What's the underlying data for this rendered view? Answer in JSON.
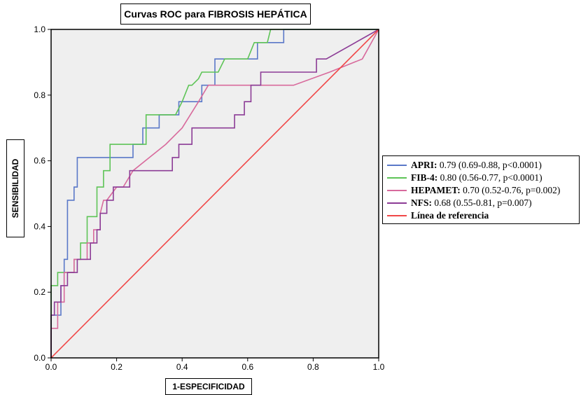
{
  "chart_data": {
    "type": "line",
    "title": "Curvas ROC para FIBROSIS HEPÁTICA",
    "xlabel": "1-ESPECIFICIDAD",
    "ylabel": "SENSIBILIDAD",
    "xlim": [
      0,
      1
    ],
    "ylim": [
      0,
      1
    ],
    "x_ticks": [
      "0.0",
      "0.2",
      "0.4",
      "0.6",
      "0.8",
      "1.0"
    ],
    "y_ticks": [
      "0.0",
      "0.2",
      "0.4",
      "0.6",
      "0.8",
      "1.0"
    ],
    "grid": false,
    "legend_position": "right",
    "plot_background": "#efefef",
    "series": [
      {
        "key": "apri",
        "name": "APRI:",
        "label_rest": " 0.79 (0.69-0.88, p<0.0001)",
        "color": "#5a78c8",
        "x": [
          0,
          0,
          0.03,
          0.03,
          0.04,
          0.04,
          0.05,
          0.05,
          0.07,
          0.07,
          0.08,
          0.08,
          0.25,
          0.25,
          0.28,
          0.28,
          0.33,
          0.33,
          0.39,
          0.39,
          0.46,
          0.46,
          0.5,
          0.5,
          0.59,
          0.59,
          0.63,
          0.63,
          0.66,
          0.66,
          0.71,
          0.71,
          1.0
        ],
        "y": [
          0,
          0.13,
          0.13,
          0.22,
          0.22,
          0.3,
          0.3,
          0.48,
          0.48,
          0.52,
          0.52,
          0.61,
          0.61,
          0.65,
          0.65,
          0.7,
          0.7,
          0.74,
          0.74,
          0.78,
          0.78,
          0.83,
          0.83,
          0.91,
          0.91,
          0.91,
          0.91,
          0.96,
          0.96,
          0.96,
          0.96,
          1.0,
          1.0
        ]
      },
      {
        "key": "fib4",
        "name": "FIB-4:",
        "label_rest": " 0.80 (0.56-0.77, p<0.0001)",
        "color": "#5ec457",
        "x": [
          0,
          0,
          0.02,
          0.02,
          0.07,
          0.07,
          0.09,
          0.09,
          0.11,
          0.11,
          0.14,
          0.14,
          0.16,
          0.16,
          0.18,
          0.18,
          0.23,
          0.23,
          0.29,
          0.29,
          0.38,
          0.38,
          0.4,
          0.42,
          0.43,
          0.45,
          0.46,
          0.48,
          0.51,
          0.53,
          0.56,
          0.6,
          0.62,
          0.63,
          0.66,
          0.67,
          1.0
        ],
        "y": [
          0,
          0.22,
          0.22,
          0.26,
          0.26,
          0.3,
          0.3,
          0.35,
          0.35,
          0.43,
          0.43,
          0.52,
          0.52,
          0.57,
          0.57,
          0.65,
          0.65,
          0.65,
          0.65,
          0.74,
          0.74,
          0.74,
          0.78,
          0.83,
          0.83,
          0.85,
          0.87,
          0.87,
          0.87,
          0.91,
          0.91,
          0.91,
          0.96,
          0.96,
          0.96,
          1.0,
          1.0
        ]
      },
      {
        "key": "hepamet",
        "name": "HEPAMET:",
        "label_rest": " 0.70 (0.52-0.76, p=0.002)",
        "color": "#d86a9c",
        "x": [
          0,
          0,
          0.02,
          0.02,
          0.04,
          0.04,
          0.05,
          0.05,
          0.07,
          0.07,
          0.11,
          0.11,
          0.13,
          0.13,
          0.15,
          0.15,
          0.16,
          0.17,
          0.2,
          0.22,
          0.25,
          0.3,
          0.35,
          0.4,
          0.45,
          0.48,
          0.5,
          0.6,
          0.74,
          0.85,
          0.95,
          1.0
        ],
        "y": [
          0,
          0.09,
          0.09,
          0.17,
          0.17,
          0.26,
          0.26,
          0.26,
          0.26,
          0.3,
          0.3,
          0.35,
          0.35,
          0.39,
          0.39,
          0.44,
          0.48,
          0.48,
          0.52,
          0.52,
          0.57,
          0.61,
          0.65,
          0.7,
          0.78,
          0.83,
          0.83,
          0.83,
          0.83,
          0.87,
          0.91,
          1.0
        ]
      },
      {
        "key": "nfs",
        "name": "NFS:",
        "label_rest": " 0.68 (0.55-0.81, p=0.007)",
        "color": "#8c3c96",
        "x": [
          0,
          0,
          0.01,
          0.01,
          0.03,
          0.03,
          0.05,
          0.05,
          0.08,
          0.08,
          0.12,
          0.12,
          0.14,
          0.14,
          0.15,
          0.15,
          0.17,
          0.17,
          0.19,
          0.19,
          0.24,
          0.24,
          0.37,
          0.37,
          0.39,
          0.39,
          0.43,
          0.43,
          0.56,
          0.56,
          0.59,
          0.59,
          0.61,
          0.61,
          0.64,
          0.64,
          0.81,
          0.81,
          0.84,
          0.84,
          1.0
        ],
        "y": [
          0,
          0.13,
          0.13,
          0.17,
          0.17,
          0.22,
          0.22,
          0.26,
          0.26,
          0.3,
          0.3,
          0.35,
          0.35,
          0.39,
          0.39,
          0.44,
          0.44,
          0.48,
          0.48,
          0.52,
          0.52,
          0.57,
          0.57,
          0.61,
          0.61,
          0.65,
          0.65,
          0.7,
          0.7,
          0.74,
          0.74,
          0.78,
          0.78,
          0.83,
          0.83,
          0.87,
          0.87,
          0.91,
          0.91,
          0.91,
          1.0
        ]
      },
      {
        "key": "ref",
        "name": "Línea de referencia",
        "label_rest": "",
        "color": "#f04848",
        "x": [
          0,
          1
        ],
        "y": [
          0,
          1
        ]
      }
    ]
  }
}
